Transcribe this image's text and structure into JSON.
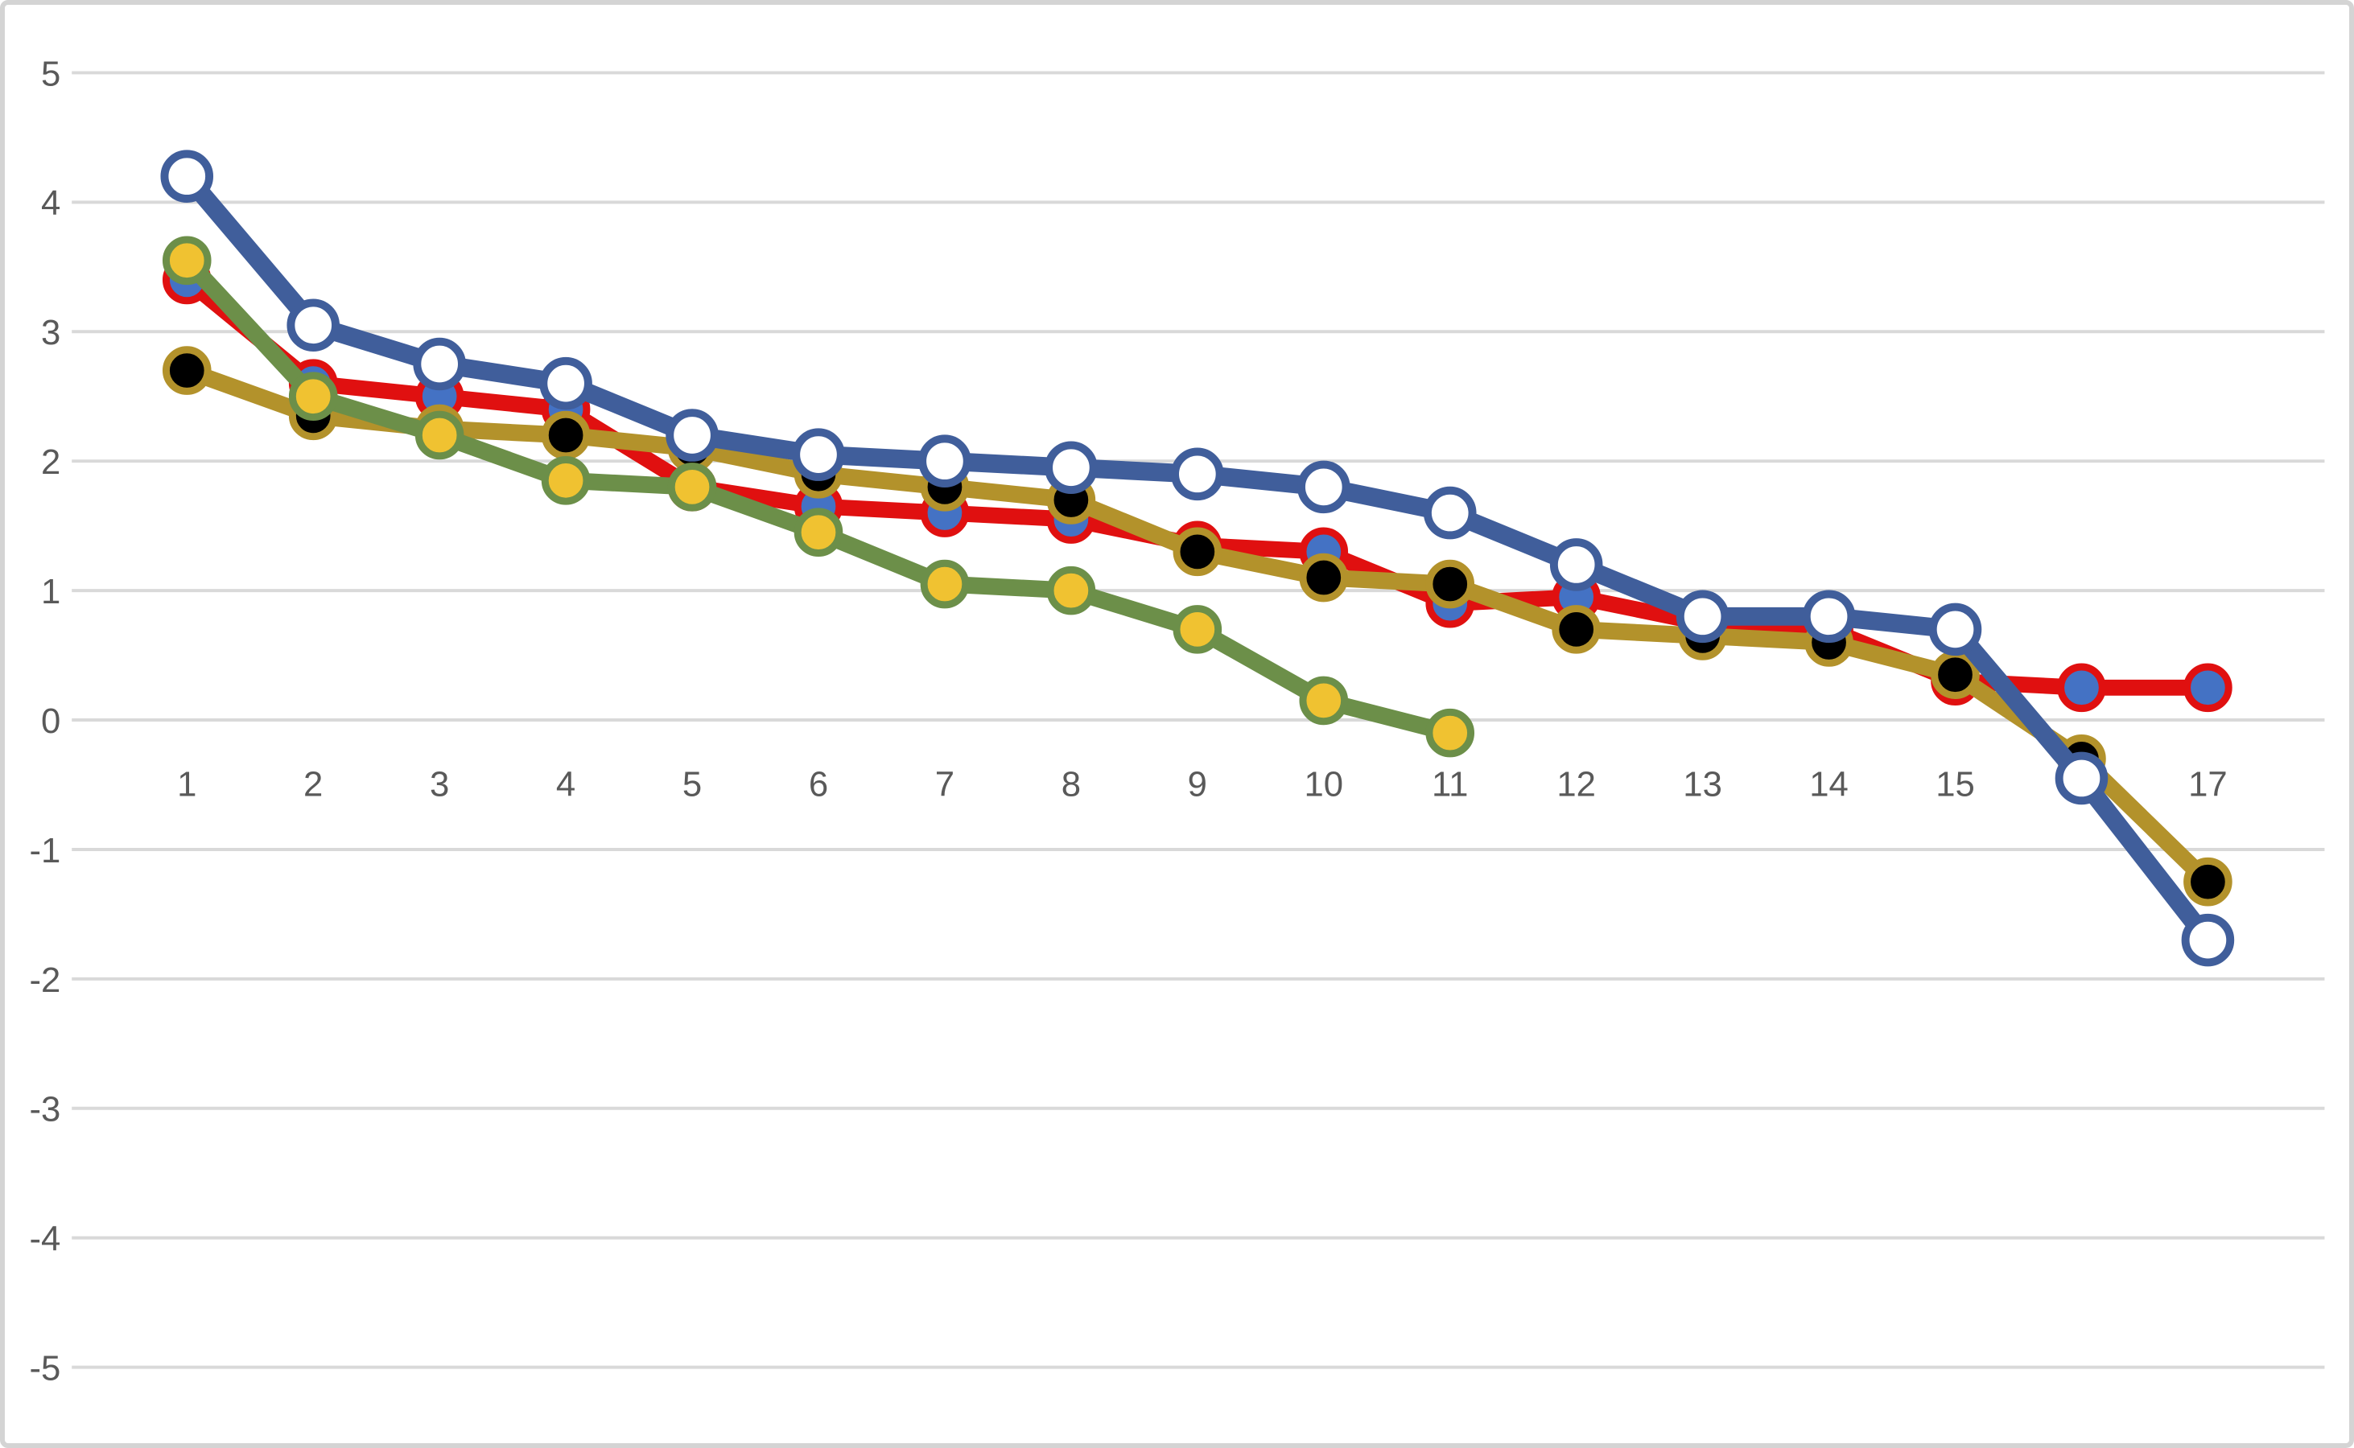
{
  "chart_data": {
    "type": "line",
    "title": "",
    "xlabel": "",
    "ylabel": "",
    "x": [
      1,
      2,
      3,
      4,
      5,
      6,
      7,
      8,
      9,
      10,
      11,
      12,
      13,
      14,
      15,
      16,
      17
    ],
    "ylim": [
      -5,
      5
    ],
    "y_ticks": [
      5,
      4,
      3,
      2,
      1,
      0,
      -1,
      -2,
      -3,
      -4,
      -5
    ],
    "grid": true,
    "legend": false,
    "colors": {
      "gridline": "#d9d9d9",
      "axis_label": "#595959",
      "background": "#ffffff"
    },
    "series": [
      {
        "name": "red-line-blue-markers",
        "line_color": "#e01010",
        "marker_fill": "#4472c4",
        "marker_outline": "#e01010",
        "line_width": 20,
        "marker_radius": 26,
        "marker_stroke_width": 9,
        "values": [
          3.4,
          2.6,
          2.5,
          2.4,
          1.8,
          1.65,
          1.6,
          1.55,
          1.35,
          1.3,
          0.9,
          0.95,
          0.75,
          0.7,
          0.3,
          0.25,
          0.25
        ]
      },
      {
        "name": "gold-line-black-markers",
        "line_color": "#b3922b",
        "marker_fill": "#000000",
        "marker_outline": "#b3922b",
        "line_width": 21,
        "marker_radius": 26,
        "marker_stroke_width": 9,
        "values": [
          2.7,
          2.35,
          2.25,
          2.2,
          2.1,
          1.9,
          1.8,
          1.7,
          1.3,
          1.1,
          1.05,
          0.7,
          0.65,
          0.6,
          0.35,
          -0.3,
          -1.25
        ]
      },
      {
        "name": "green-line-gold-markers",
        "line_color": "#6c8f49",
        "marker_fill": "#f0c231",
        "marker_outline": "#6c8f49",
        "line_width": 21,
        "marker_radius": 26,
        "marker_stroke_width": 9,
        "values": [
          3.55,
          2.5,
          2.2,
          1.85,
          1.8,
          1.45,
          1.05,
          1.0,
          0.7,
          0.15,
          -0.1
        ]
      },
      {
        "name": "blue-line-white-markers",
        "line_color": "#405e9b",
        "marker_fill": "#ffffff",
        "marker_outline": "#405e9b",
        "line_width": 23,
        "marker_radius": 28,
        "marker_stroke_width": 10,
        "values": [
          4.2,
          3.05,
          2.75,
          2.6,
          2.2,
          2.05,
          2.0,
          1.95,
          1.9,
          1.8,
          1.6,
          1.2,
          0.8,
          0.8,
          0.7,
          -0.45,
          -1.7
        ]
      }
    ]
  }
}
